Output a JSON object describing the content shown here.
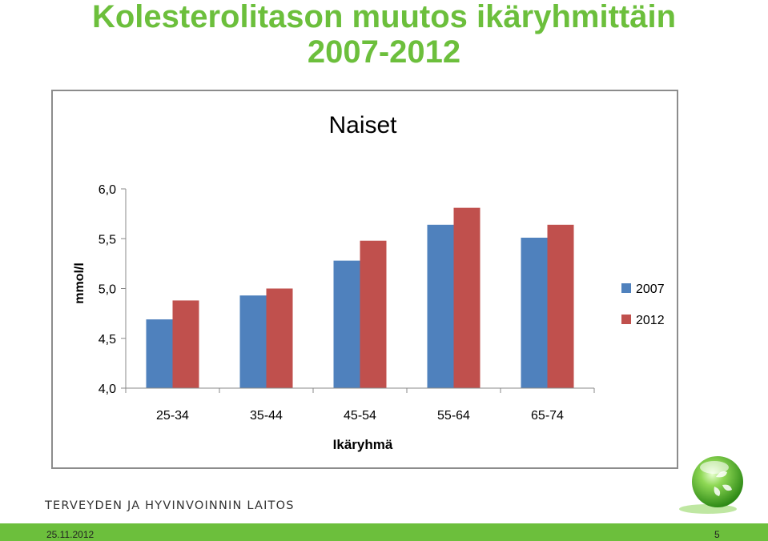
{
  "slide": {
    "title_line1": "Kolesterolitason muutos ikäryhmittäin",
    "title_line2": "2007-2012",
    "organization": "TERVEYDEN JA HYVINVOINNIN LAITOS",
    "date": "25.11.2012",
    "page_number": "5",
    "accent_color": "#6cbf3c"
  },
  "chart_data": {
    "type": "bar",
    "title": "Naiset",
    "xlabel": "Ikäryhmä",
    "ylabel": "mmol/l",
    "categories": [
      "25-34",
      "35-44",
      "45-54",
      "55-64",
      "65-74"
    ],
    "ylim": [
      4.0,
      6.0
    ],
    "yticks": [
      "4,0",
      "4,5",
      "5,0",
      "5,5",
      "6,0"
    ],
    "grid": false,
    "legend_position": "right",
    "series": [
      {
        "name": "2007",
        "color": "#4f81bd",
        "values": [
          4.69,
          4.93,
          5.28,
          5.64,
          5.51
        ]
      },
      {
        "name": "2012",
        "color": "#c0504d",
        "values": [
          4.88,
          5.0,
          5.48,
          5.81,
          5.64
        ]
      }
    ]
  }
}
